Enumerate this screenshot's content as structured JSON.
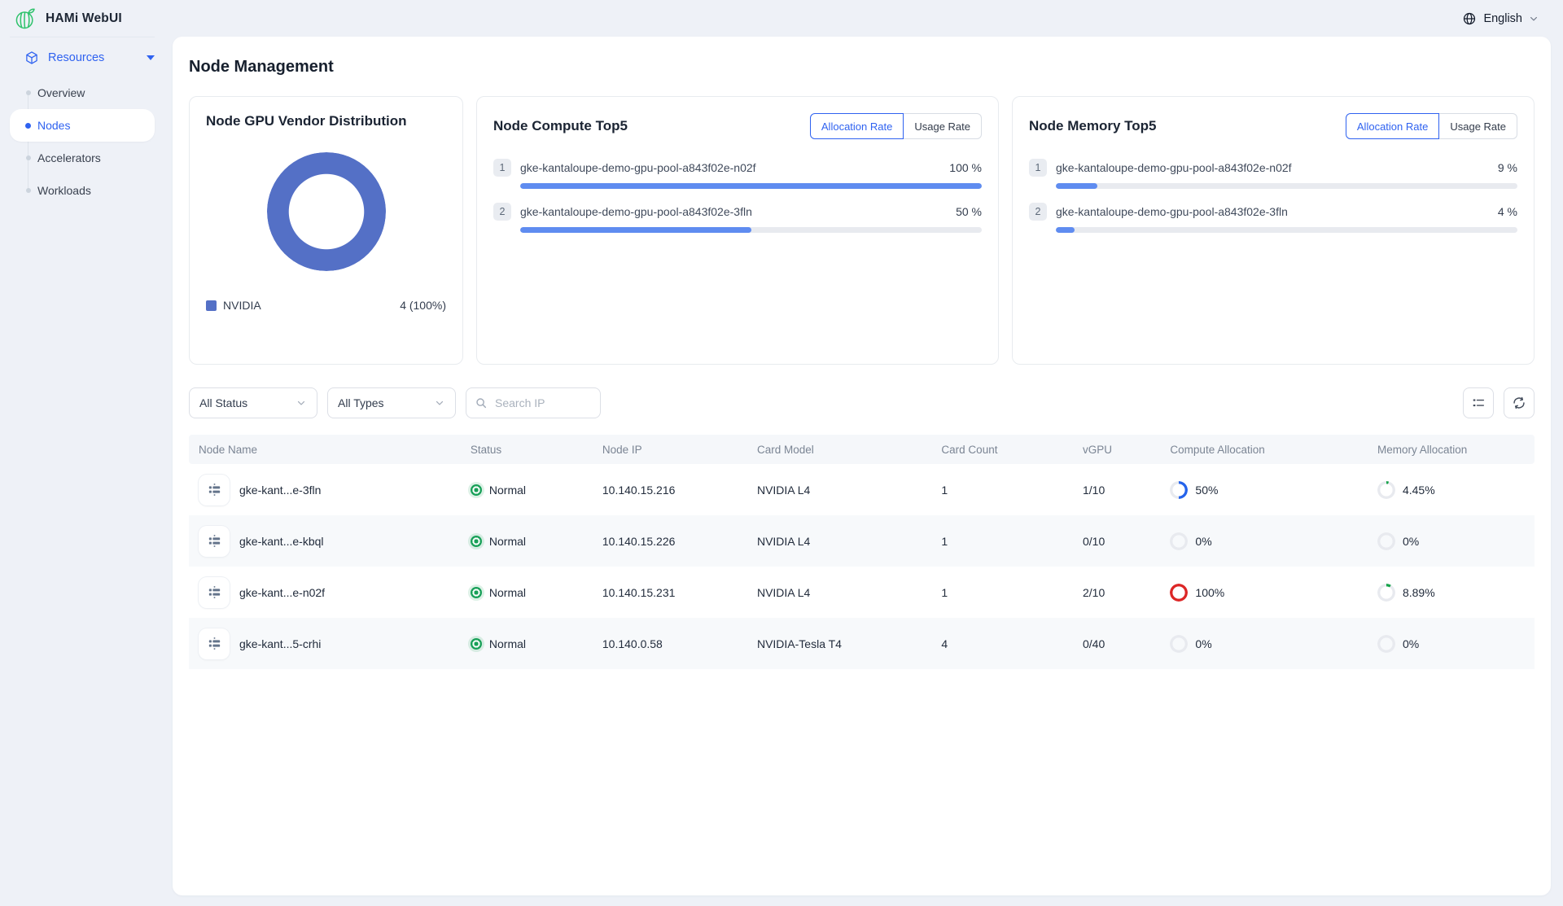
{
  "app": {
    "title": "HAMi WebUI",
    "language": "English"
  },
  "sidebar": {
    "section_label": "Resources",
    "items": [
      {
        "label": "Overview",
        "active": false
      },
      {
        "label": "Nodes",
        "active": true
      },
      {
        "label": "Accelerators",
        "active": false
      },
      {
        "label": "Workloads",
        "active": false
      }
    ]
  },
  "page": {
    "title": "Node Management"
  },
  "cards": {
    "vendor": {
      "title": "Node GPU Vendor Distribution",
      "chart": {
        "type": "pie",
        "series": [
          {
            "name": "NVIDIA",
            "value": 4,
            "percent": 100
          }
        ]
      },
      "legend_label": "NVIDIA",
      "legend_value": "4 (100%)",
      "color": "#5470c6"
    },
    "compute": {
      "title": "Node Compute Top5",
      "tabs": [
        {
          "label": "Allocation Rate",
          "active": true
        },
        {
          "label": "Usage Rate",
          "active": false
        }
      ],
      "rows": [
        {
          "rank": "1",
          "name": "gke-kantaloupe-demo-gpu-pool-a843f02e-n02f",
          "value": "100 %",
          "percent": 100
        },
        {
          "rank": "2",
          "name": "gke-kantaloupe-demo-gpu-pool-a843f02e-3fln",
          "value": "50 %",
          "percent": 50
        }
      ]
    },
    "memory": {
      "title": "Node Memory Top5",
      "tabs": [
        {
          "label": "Allocation Rate",
          "active": true
        },
        {
          "label": "Usage Rate",
          "active": false
        }
      ],
      "rows": [
        {
          "rank": "1",
          "name": "gke-kantaloupe-demo-gpu-pool-a843f02e-n02f",
          "value": "9 %",
          "percent": 9
        },
        {
          "rank": "2",
          "name": "gke-kantaloupe-demo-gpu-pool-a843f02e-3fln",
          "value": "4 %",
          "percent": 4
        }
      ]
    }
  },
  "filters": {
    "status_value": "All Status",
    "type_value": "All Types",
    "search_placeholder": "Search IP"
  },
  "table": {
    "columns": [
      "Node Name",
      "Status",
      "Node IP",
      "Card Model",
      "Card Count",
      "vGPU",
      "Compute Allocation",
      "Memory Allocation"
    ],
    "rows": [
      {
        "name": "gke-kant...e-3fln",
        "status": "Normal",
        "ip": "10.140.15.216",
        "card_model": "NVIDIA L4",
        "card_count": "1",
        "vgpu": "1/10",
        "compute": {
          "text": "50%",
          "percent": 50,
          "color": "#2563eb"
        },
        "memory": {
          "text": "4.45%",
          "percent": 4.45,
          "color": "#16a34a"
        }
      },
      {
        "name": "gke-kant...e-kbql",
        "status": "Normal",
        "ip": "10.140.15.226",
        "card_model": "NVIDIA L4",
        "card_count": "1",
        "vgpu": "0/10",
        "compute": {
          "text": "0%",
          "percent": 0,
          "color": "#e8ebef"
        },
        "memory": {
          "text": "0%",
          "percent": 0,
          "color": "#e8ebef"
        }
      },
      {
        "name": "gke-kant...e-n02f",
        "status": "Normal",
        "ip": "10.140.15.231",
        "card_model": "NVIDIA L4",
        "card_count": "1",
        "vgpu": "2/10",
        "compute": {
          "text": "100%",
          "percent": 100,
          "color": "#dc2626"
        },
        "memory": {
          "text": "8.89%",
          "percent": 8.89,
          "color": "#16a34a"
        }
      },
      {
        "name": "gke-kant...5-crhi",
        "status": "Normal",
        "ip": "10.140.0.58",
        "card_model": "NVIDIA-Tesla T4",
        "card_count": "4",
        "vgpu": "0/40",
        "compute": {
          "text": "0%",
          "percent": 0,
          "color": "#e8ebef"
        },
        "memory": {
          "text": "0%",
          "percent": 0,
          "color": "#e8ebef"
        }
      }
    ]
  },
  "colors": {
    "bar_blue": "#5f8cf0",
    "track_gray": "#e8eaef",
    "accent_blue": "#2f62f0",
    "success_green": "#18a058"
  }
}
